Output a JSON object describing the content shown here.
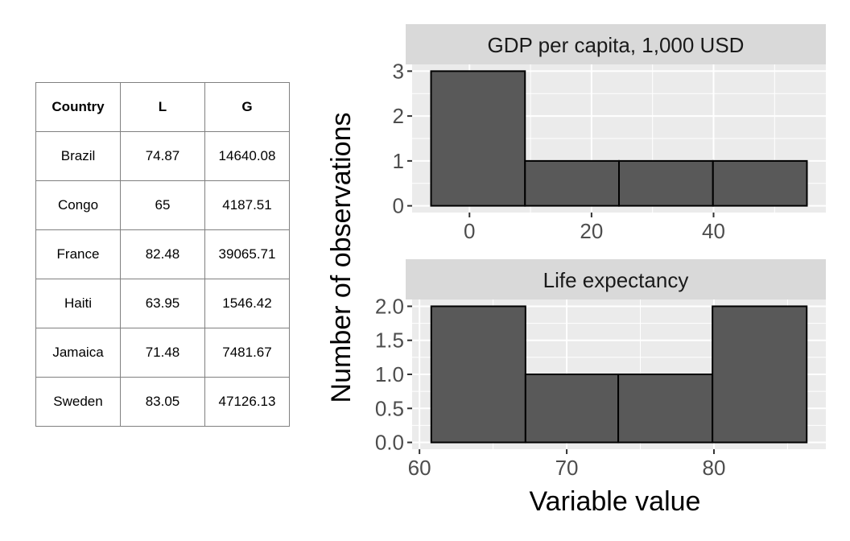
{
  "table": {
    "headers": [
      "Country",
      "L",
      "G"
    ],
    "rows": [
      [
        "Brazil",
        "74.87",
        "14640.08"
      ],
      [
        "Congo",
        "65",
        "4187.51"
      ],
      [
        "France",
        "82.48",
        "39065.71"
      ],
      [
        "Haiti",
        "63.95",
        "1546.42"
      ],
      [
        "Jamaica",
        "71.48",
        "7481.67"
      ],
      [
        "Sweden",
        "83.05",
        "47126.13"
      ]
    ]
  },
  "chart_data": {
    "type": "bar",
    "xlabel": "Variable value",
    "ylabel": "Number of observations",
    "facets": [
      {
        "title": "GDP per capita, 1,000 USD",
        "bins": [
          {
            "start": -6.3,
            "end": 9.1,
            "count": 3
          },
          {
            "start": 9.1,
            "end": 24.5,
            "count": 1
          },
          {
            "start": 24.5,
            "end": 39.9,
            "count": 1
          },
          {
            "start": 39.9,
            "end": 55.3,
            "count": 1
          }
        ],
        "xlim": [
          -9.4,
          58.4
        ],
        "xticks": [
          0,
          20,
          40
        ],
        "ylim": [
          -0.15,
          3.15
        ],
        "yticks": [
          0,
          1,
          2,
          3
        ]
      },
      {
        "title": "Life expectancy",
        "bins": [
          {
            "start": 60.8,
            "end": 67.2,
            "count": 2
          },
          {
            "start": 67.2,
            "end": 73.5,
            "count": 1
          },
          {
            "start": 73.5,
            "end": 79.9,
            "count": 1
          },
          {
            "start": 79.9,
            "end": 86.3,
            "count": 2
          }
        ],
        "xlim": [
          59.5,
          87.6
        ],
        "xticks": [
          60,
          70,
          80
        ],
        "ylim": [
          -0.1,
          2.1
        ],
        "yticks": [
          0.0,
          0.5,
          1.0,
          1.5,
          2.0
        ]
      }
    ],
    "colors": {
      "bar_fill": "#595959",
      "bar_stroke": "#000000",
      "panel_bg": "#ebebeb",
      "strip_bg": "#d9d9d9",
      "grid": "#ffffff"
    }
  }
}
